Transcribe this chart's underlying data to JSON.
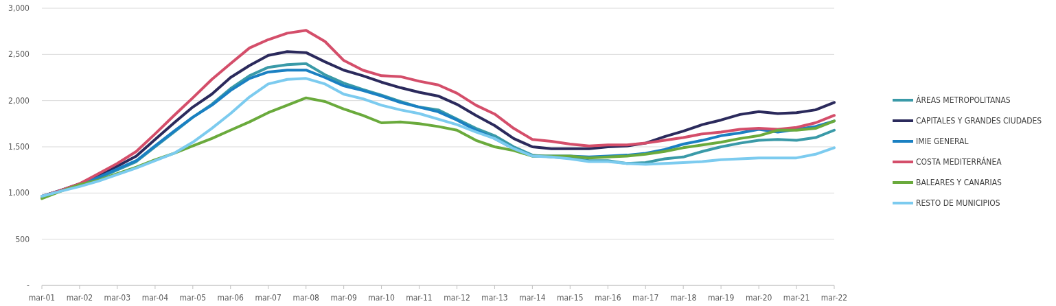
{
  "chart_data": {
    "type": "line",
    "legend": "right",
    "grid": "y",
    "line_style": "solid",
    "marker": "none",
    "x": [
      "2001-03",
      "2001-09",
      "2002-03",
      "2002-09",
      "2003-03",
      "2003-09",
      "2004-03",
      "2004-09",
      "2005-03",
      "2005-09",
      "2006-03",
      "2006-09",
      "2007-03",
      "2007-09",
      "2008-03",
      "2008-09",
      "2009-03",
      "2009-09",
      "2010-03",
      "2010-09",
      "2011-03",
      "2011-09",
      "2012-03",
      "2012-09",
      "2013-03",
      "2013-09",
      "2014-03",
      "2014-09",
      "2015-03",
      "2015-09",
      "2016-03",
      "2016-09",
      "2017-03",
      "2017-09",
      "2018-03",
      "2018-09",
      "2019-03",
      "2019-09",
      "2020-03",
      "2020-09",
      "2021-03",
      "2021-09",
      "2022-03"
    ],
    "xlim": [
      "2001-03",
      "2022-03"
    ],
    "xticks": [
      {
        "value": "2001-03",
        "label": "mar-01"
      },
      {
        "value": "2002-03",
        "label": "mar-02"
      },
      {
        "value": "2003-03",
        "label": "mar-03"
      },
      {
        "value": "2004-03",
        "label": "mar-04"
      },
      {
        "value": "2005-03",
        "label": "mar-05"
      },
      {
        "value": "2006-03",
        "label": "mar-06"
      },
      {
        "value": "2007-03",
        "label": "mar-07"
      },
      {
        "value": "2008-03",
        "label": "mar-08"
      },
      {
        "value": "2009-03",
        "label": "mar-09"
      },
      {
        "value": "2010-03",
        "label": "mar-10"
      },
      {
        "value": "2011-03",
        "label": "mar-11"
      },
      {
        "value": "2012-03",
        "label": "mar-12"
      },
      {
        "value": "2013-03",
        "label": "mar-13"
      },
      {
        "value": "2014-03",
        "label": "mar-14"
      },
      {
        "value": "2015-03",
        "label": "mar-15"
      },
      {
        "value": "2016-03",
        "label": "mar-16"
      },
      {
        "value": "2017-03",
        "label": "mar-17"
      },
      {
        "value": "2018-03",
        "label": "mar-18"
      },
      {
        "value": "2019-03",
        "label": "mar-19"
      },
      {
        "value": "2020-03",
        "label": "mar-20"
      },
      {
        "value": "2021-03",
        "label": "mar-21"
      },
      {
        "value": "2022-03",
        "label": "mar-22"
      }
    ],
    "ylim": [
      0,
      3000
    ],
    "yticks": [
      {
        "value": 0,
        "label": "-"
      },
      500,
      {
        "value": 1000,
        "label": "1,000"
      },
      {
        "value": 1500,
        "label": "1,500"
      },
      {
        "value": 2000,
        "label": "2,000"
      },
      {
        "value": 2500,
        "label": "2,500"
      },
      {
        "value": 3000,
        "label": "3,000"
      }
    ],
    "series": [
      {
        "name": "ÁREAS METROPOLITANAS",
        "color": "#3a9aa8",
        "values": [
          965,
          1030,
          1090,
          1160,
          1250,
          1340,
          1500,
          1660,
          1820,
          1960,
          2130,
          2270,
          2360,
          2390,
          2400,
          2280,
          2190,
          2120,
          2060,
          1990,
          1930,
          1900,
          1800,
          1700,
          1620,
          1500,
          1410,
          1390,
          1380,
          1350,
          1350,
          1320,
          1330,
          1370,
          1390,
          1450,
          1500,
          1540,
          1570,
          1580,
          1570,
          1600,
          1680
        ]
      },
      {
        "name": "CAPITALES Y GRANDES CIUDADES",
        "color": "#2b2a5c",
        "values": [
          965,
          1030,
          1100,
          1180,
          1290,
          1400,
          1580,
          1760,
          1930,
          2070,
          2250,
          2380,
          2490,
          2530,
          2520,
          2420,
          2330,
          2270,
          2200,
          2140,
          2090,
          2050,
          1960,
          1840,
          1730,
          1590,
          1500,
          1480,
          1480,
          1480,
          1500,
          1510,
          1540,
          1610,
          1670,
          1740,
          1790,
          1850,
          1880,
          1860,
          1870,
          1900,
          1980
        ]
      },
      {
        "name": "IMIE GENERAL",
        "color": "#1a80c2",
        "values": [
          965,
          1030,
          1090,
          1170,
          1260,
          1350,
          1510,
          1670,
          1820,
          1950,
          2110,
          2240,
          2310,
          2330,
          2330,
          2250,
          2160,
          2110,
          2050,
          1980,
          1930,
          1880,
          1790,
          1680,
          1590,
          1480,
          1400,
          1400,
          1400,
          1390,
          1400,
          1410,
          1430,
          1470,
          1530,
          1570,
          1620,
          1650,
          1690,
          1660,
          1690,
          1720,
          1780
        ]
      },
      {
        "name": "COSTA MEDITERRÁNEA",
        "color": "#d44e6a",
        "values": [
          965,
          1030,
          1100,
          1210,
          1320,
          1450,
          1640,
          1840,
          2030,
          2230,
          2400,
          2570,
          2660,
          2730,
          2760,
          2640,
          2435,
          2330,
          2270,
          2260,
          2210,
          2170,
          2080,
          1950,
          1855,
          1700,
          1580,
          1560,
          1530,
          1510,
          1520,
          1520,
          1540,
          1570,
          1600,
          1640,
          1660,
          1690,
          1700,
          1690,
          1710,
          1760,
          1840
        ]
      },
      {
        "name": "BALEARES Y CANARIAS",
        "color": "#6aaa3c",
        "values": [
          940,
          1020,
          1090,
          1140,
          1210,
          1280,
          1360,
          1430,
          1510,
          1590,
          1680,
          1770,
          1870,
          1950,
          2030,
          1990,
          1910,
          1840,
          1760,
          1770,
          1750,
          1720,
          1680,
          1570,
          1500,
          1460,
          1400,
          1400,
          1400,
          1380,
          1390,
          1400,
          1420,
          1450,
          1490,
          1520,
          1550,
          1590,
          1620,
          1680,
          1680,
          1700,
          1780
        ]
      },
      {
        "name": "RESTO DE MUNICIPIOS",
        "color": "#7ccbef",
        "values": [
          965,
          1020,
          1070,
          1130,
          1200,
          1270,
          1350,
          1430,
          1550,
          1700,
          1860,
          2040,
          2180,
          2230,
          2240,
          2180,
          2070,
          2020,
          1950,
          1900,
          1860,
          1800,
          1740,
          1660,
          1590,
          1480,
          1400,
          1390,
          1370,
          1340,
          1340,
          1320,
          1310,
          1320,
          1330,
          1340,
          1360,
          1370,
          1380,
          1380,
          1380,
          1420,
          1490
        ]
      }
    ]
  }
}
